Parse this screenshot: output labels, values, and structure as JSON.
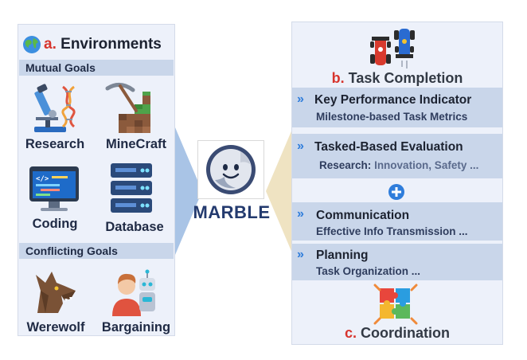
{
  "environments": {
    "letter": "a.",
    "title": "Environments",
    "mutual_goals_label": "Mutual Goals",
    "conflicting_goals_label": "Conflicting Goals",
    "mutual": [
      {
        "label": "Research",
        "icon": "microscope-dna-icon"
      },
      {
        "label": "MineCraft",
        "icon": "pickaxe-blocks-icon"
      },
      {
        "label": "Coding",
        "icon": "code-monitor-icon"
      },
      {
        "label": "Database",
        "icon": "server-rack-icon"
      }
    ],
    "conflicting": [
      {
        "label": "Werewolf",
        "icon": "werewolf-icon"
      },
      {
        "label": "Bargaining",
        "icon": "human-robot-icon"
      }
    ]
  },
  "center": {
    "label": "MARBLE",
    "icon": "smiling-marble-icon"
  },
  "task_completion": {
    "letter": "b.",
    "title": "Task Completion",
    "items": [
      {
        "title": "Key Performance Indicator",
        "subtitle": "Milestone-based Task Metrics"
      },
      {
        "title": "Tasked-Based Evaluation",
        "subtitle_label": "Research:",
        "subtitle": "Innovation, Safety ..."
      }
    ]
  },
  "coordination": {
    "letter": "c.",
    "title": "Coordination",
    "items": [
      {
        "title": "Communication",
        "subtitle": "Effective Info Transmission ..."
      },
      {
        "title": "Planning",
        "subtitle": "Task Organization ..."
      }
    ]
  },
  "colors": {
    "panel_bg": "#edf1fa",
    "band_bg": "#c9d6ea",
    "accent_red": "#d7342d",
    "accent_blue": "#2f7ddb",
    "marble_text": "#233a6e",
    "arrow_left": "#a9c4e6",
    "arrow_right": "#efe3c2"
  }
}
